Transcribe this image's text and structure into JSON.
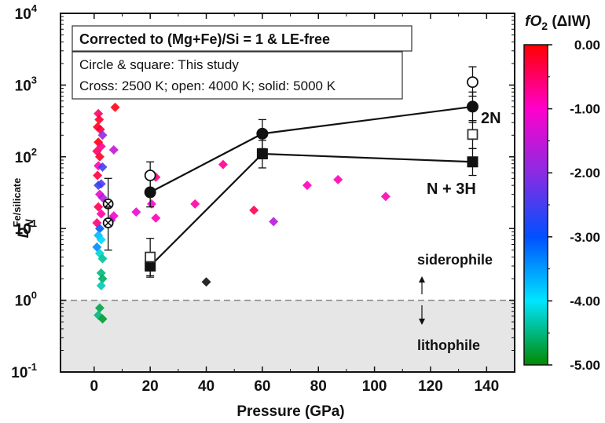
{
  "chart_data": {
    "type": "scatter",
    "xlabel": "Pressure (GPa)",
    "ylabel_main": "D",
    "ylabel_sub": "N",
    "ylabel_sup": "Fe/silicate",
    "xlim": [
      -12,
      150
    ],
    "ylim_log10": [
      -1,
      4
    ],
    "yscale": "log",
    "x_ticks": [
      0,
      20,
      40,
      60,
      80,
      100,
      120,
      140
    ],
    "x_tick_labels": [
      "0",
      "20",
      "40",
      "60",
      "80",
      "100",
      "120",
      "140"
    ],
    "y_ticks": [
      {
        "exp": 4,
        "base": "10",
        "sup": "4"
      },
      {
        "exp": 3,
        "base": "10",
        "sup": "3"
      },
      {
        "exp": 2,
        "base": "10",
        "sup": "2"
      },
      {
        "exp": 1,
        "base": "10",
        "sup": "1"
      },
      {
        "exp": 0,
        "base": "10",
        "sup": "0"
      },
      {
        "exp": -1,
        "base": "10",
        "sup": "-1"
      }
    ],
    "title_box": "Corrected to (Mg+Fe)/Si = 1 & LE-free",
    "legend_lines": [
      "Circle & square: This study",
      "Cross: 2500 K; open: 4000 K; solid: 5000 K"
    ],
    "threshold": {
      "y": 1,
      "above_label": "siderophile",
      "below_label": "lithophile"
    },
    "series": [
      {
        "name": "2N",
        "marker": "circle",
        "line": true,
        "points": [
          {
            "x": 20,
            "y": 32,
            "lo": 20,
            "hi": 50
          },
          {
            "x": 60,
            "y": 210,
            "lo": 130,
            "hi": 330
          },
          {
            "x": 135,
            "y": 500,
            "lo": 300,
            "hi": 800
          }
        ]
      },
      {
        "name": "N + 3H",
        "marker": "square",
        "line": true,
        "points": [
          {
            "x": 20,
            "y": 3,
            "lo": 2.1,
            "hi": 4.3
          },
          {
            "x": 60,
            "y": 110,
            "lo": 70,
            "hi": 170
          },
          {
            "x": 135,
            "y": 85,
            "lo": 55,
            "hi": 130
          }
        ]
      },
      {
        "name": "2N open (4000 K)",
        "marker": "circle-open",
        "points": [
          {
            "x": 20,
            "y": 55,
            "lo": 35,
            "hi": 85
          },
          {
            "x": 135,
            "y": 1100,
            "lo": 700,
            "hi": 1800
          }
        ]
      },
      {
        "name": "N + 3H open (4000 K)",
        "marker": "square-open",
        "points": [
          {
            "x": 20,
            "y": 4,
            "lo": 2.2,
            "hi": 7.3
          },
          {
            "x": 135,
            "y": 205,
            "lo": 130,
            "hi": 320
          }
        ]
      },
      {
        "name": "Cross (2500 K)",
        "marker": "cross",
        "points": [
          {
            "x": 5,
            "y": 22,
            "lo": 12,
            "hi": 50
          },
          {
            "x": 5,
            "y": 12,
            "lo": 5,
            "hi": 20
          }
        ]
      }
    ],
    "literature_diamonds": [
      {
        "x": 1.5,
        "y": 400,
        "f": -0.5
      },
      {
        "x": 1.8,
        "y": 330,
        "f": -0.2
      },
      {
        "x": 1.2,
        "y": 260,
        "f": -0.1
      },
      {
        "x": 2.2,
        "y": 240,
        "f": -0.3
      },
      {
        "x": 3.0,
        "y": 200,
        "f": -1.9
      },
      {
        "x": 1.5,
        "y": 160,
        "f": -0.05
      },
      {
        "x": 2.5,
        "y": 140,
        "f": -0.7
      },
      {
        "x": 1.0,
        "y": 120,
        "f": -0.5
      },
      {
        "x": 2.0,
        "y": 100,
        "f": -0.2
      },
      {
        "x": 1.5,
        "y": 75,
        "f": -0.9
      },
      {
        "x": 3.0,
        "y": 72,
        "f": -2.5
      },
      {
        "x": 1.2,
        "y": 55,
        "f": -0.3
      },
      {
        "x": 2.5,
        "y": 42,
        "f": -2.4
      },
      {
        "x": 1.5,
        "y": 40,
        "f": -2.6
      },
      {
        "x": 2.0,
        "y": 30,
        "f": -1.2
      },
      {
        "x": 3.0,
        "y": 27,
        "f": -1.7
      },
      {
        "x": 1.5,
        "y": 20,
        "f": -0.4
      },
      {
        "x": 2.5,
        "y": 16,
        "f": -0.8
      },
      {
        "x": 1.0,
        "y": 12,
        "f": -0.6
      },
      {
        "x": 2.0,
        "y": 10,
        "f": -3.1
      },
      {
        "x": 1.5,
        "y": 8,
        "f": -3.7
      },
      {
        "x": 2.5,
        "y": 7,
        "f": -3.9
      },
      {
        "x": 1.0,
        "y": 5.5,
        "f": -3.4
      },
      {
        "x": 2.0,
        "y": 4.5,
        "f": -4.2
      },
      {
        "x": 3.0,
        "y": 3.8,
        "f": -4.4
      },
      {
        "x": 2.5,
        "y": 2.4,
        "f": -4.5
      },
      {
        "x": 3.0,
        "y": 2.0,
        "f": -4.6
      },
      {
        "x": 2.5,
        "y": 1.6,
        "f": -4.3
      },
      {
        "x": 2.0,
        "y": 0.78,
        "f": -4.7
      },
      {
        "x": 1.5,
        "y": 0.62,
        "f": -4.5
      },
      {
        "x": 3.0,
        "y": 0.55,
        "f": -4.8
      },
      {
        "x": 7.5,
        "y": 490,
        "f": -0.1
      },
      {
        "x": 7.0,
        "y": 125,
        "f": -1.5
      },
      {
        "x": 7.0,
        "y": 15,
        "f": -1.1
      },
      {
        "x": 6.0,
        "y": 13,
        "f": -1.5
      },
      {
        "x": 15,
        "y": 17,
        "f": -1.2
      },
      {
        "x": 22,
        "y": 52,
        "f": -0.6
      },
      {
        "x": 20.5,
        "y": 22,
        "f": -1.0
      },
      {
        "x": 22,
        "y": 14,
        "f": -0.9
      },
      {
        "x": 36,
        "y": 22,
        "f": -0.8
      },
      {
        "x": 40,
        "y": 1.8,
        "f": -9
      },
      {
        "x": 46,
        "y": 78,
        "f": -0.7
      },
      {
        "x": 57,
        "y": 18,
        "f": -0.4
      },
      {
        "x": 64,
        "y": 12.5,
        "f": -1.6
      },
      {
        "x": 76,
        "y": 40,
        "f": -0.9
      },
      {
        "x": 87,
        "y": 48,
        "f": -0.9
      },
      {
        "x": 104,
        "y": 28,
        "f": -0.9
      }
    ],
    "colorbar": {
      "title_main": "fO",
      "title_sub": "2",
      "title_tail": " (ΔIW)",
      "range": [
        -5,
        0
      ],
      "ticks": [
        "0.00",
        "-1.00",
        "-2.00",
        "-3.00",
        "-4.00",
        "-5.00"
      ],
      "stops": [
        "#ff0000",
        "#ff00ff",
        "#0000ff",
        "#00ffff",
        "#008000"
      ]
    }
  }
}
